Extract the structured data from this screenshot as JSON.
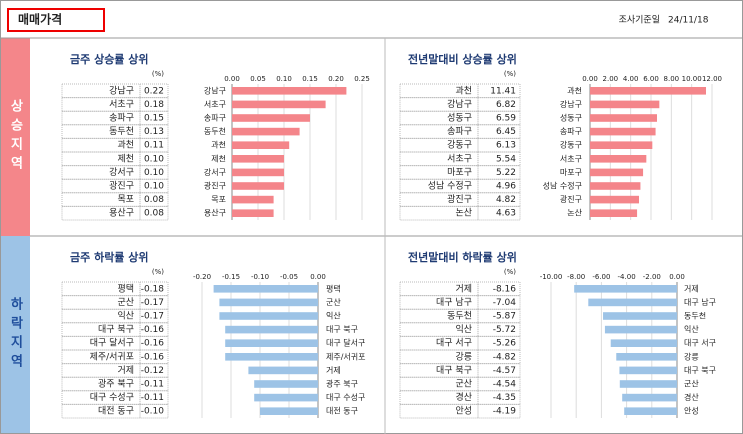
{
  "header": {
    "title": "매매가격",
    "date_label": "조사기준일",
    "date": "24/11/18"
  },
  "sections": [
    "상승지역",
    "하락지역"
  ],
  "chart_data": [
    {
      "type": "bar",
      "orientation": "horizontal",
      "title": "금주 상승률 상위",
      "unit": "(%)",
      "color": "#f4858a",
      "grid": true,
      "categories": [
        "강남구",
        "서초구",
        "송파구",
        "동두천",
        "과천",
        "제천",
        "강서구",
        "광진구",
        "목포",
        "용산구"
      ],
      "values": [
        0.22,
        0.18,
        0.15,
        0.13,
        0.11,
        0.1,
        0.1,
        0.1,
        0.08,
        0.08
      ],
      "value_labels": [
        "0.22",
        "0.18",
        "0.15",
        "0.13",
        "0.11",
        "0.10",
        "0.10",
        "0.10",
        "0.08",
        "0.08"
      ],
      "xlim": [
        0,
        0.25
      ],
      "xticks": [
        {
          "value": 0,
          "label": "0.00"
        },
        {
          "value": 0.05,
          "label": "0.05"
        },
        {
          "value": 0.1,
          "label": "0.10"
        },
        {
          "value": 0.15,
          "label": "0.15"
        },
        {
          "value": 0.2,
          "label": "0.20"
        },
        {
          "value": 0.25,
          "label": "0.25"
        }
      ]
    },
    {
      "type": "bar",
      "orientation": "horizontal",
      "title": "전년말대비 상승률 상위",
      "unit": "(%)",
      "color": "#f4858a",
      "grid": true,
      "categories": [
        "과천",
        "강남구",
        "성동구",
        "송파구",
        "강동구",
        "서초구",
        "마포구",
        "성남 수정구",
        "광진구",
        "논산"
      ],
      "values": [
        11.41,
        6.82,
        6.59,
        6.45,
        6.13,
        5.54,
        5.22,
        4.96,
        4.82,
        4.63
      ],
      "value_labels": [
        "11.41",
        "6.82",
        "6.59",
        "6.45",
        "6.13",
        "5.54",
        "5.22",
        "4.96",
        "4.82",
        "4.63"
      ],
      "xlim": [
        0,
        12
      ],
      "xticks": [
        {
          "value": 0,
          "label": "0.00"
        },
        {
          "value": 2,
          "label": "2.00"
        },
        {
          "value": 4,
          "label": "4.00"
        },
        {
          "value": 6,
          "label": "6.00"
        },
        {
          "value": 8,
          "label": "8.00"
        },
        {
          "value": 10,
          "label": "10.00"
        },
        {
          "value": 12,
          "label": "12.00"
        }
      ]
    },
    {
      "type": "bar",
      "orientation": "horizontal",
      "title": "금주 하락률 상위",
      "unit": "(%)",
      "color": "#9dc3e6",
      "grid": true,
      "categories": [
        "평택",
        "군산",
        "익산",
        "대구 북구",
        "대구 달서구",
        "제주/서귀포",
        "거제",
        "광주 북구",
        "대구 수성구",
        "대전 동구"
      ],
      "values": [
        -0.18,
        -0.17,
        -0.17,
        -0.16,
        -0.16,
        -0.16,
        -0.12,
        -0.11,
        -0.11,
        -0.1
      ],
      "value_labels": [
        "-0.18",
        "-0.17",
        "-0.17",
        "-0.16",
        "-0.16",
        "-0.16",
        "-0.12",
        "-0.11",
        "-0.11",
        "-0.10"
      ],
      "xlim": [
        -0.2,
        0
      ],
      "xticks": [
        {
          "value": -0.2,
          "label": "-0.20"
        },
        {
          "value": -0.15,
          "label": "-0.15"
        },
        {
          "value": -0.1,
          "label": "-0.10"
        },
        {
          "value": -0.05,
          "label": "-0.05"
        },
        {
          "value": 0,
          "label": "0.00"
        }
      ]
    },
    {
      "type": "bar",
      "orientation": "horizontal",
      "title": "전년말대비 하락률 상위",
      "unit": "(%)",
      "color": "#9dc3e6",
      "grid": true,
      "categories": [
        "거제",
        "대구 남구",
        "동두천",
        "익산",
        "대구 서구",
        "강릉",
        "대구 북구",
        "군산",
        "경산",
        "안성"
      ],
      "values": [
        -8.16,
        -7.04,
        -5.87,
        -5.72,
        -5.26,
        -4.82,
        -4.57,
        -4.54,
        -4.35,
        -4.19
      ],
      "value_labels": [
        "-8.16",
        "-7.04",
        "-5.87",
        "-5.72",
        "-5.26",
        "-4.82",
        "-4.57",
        "-4.54",
        "-4.35",
        "-4.19"
      ],
      "xlim": [
        -10,
        0
      ],
      "xticks": [
        {
          "value": -10,
          "label": "-10.00"
        },
        {
          "value": -8,
          "label": "-8.00"
        },
        {
          "value": -6,
          "label": "-6.00"
        },
        {
          "value": -4,
          "label": "-4.00"
        },
        {
          "value": -2,
          "label": "-2.00"
        },
        {
          "value": 0,
          "label": "0.00"
        }
      ]
    }
  ]
}
